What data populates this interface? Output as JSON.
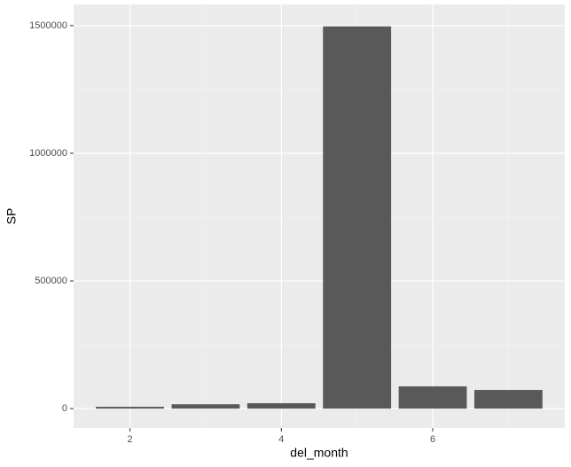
{
  "chart_data": {
    "type": "bar",
    "x_label": "del_month",
    "y_label": "SP",
    "x": [
      2,
      3,
      4,
      5,
      6,
      7
    ],
    "values": [
      7000,
      17000,
      21000,
      1497000,
      87000,
      73000
    ],
    "color": "#595959",
    "xlim": [
      1.255,
      7.745
    ],
    "xticks": [
      2,
      4,
      6
    ],
    "x_minor_grid": [
      3,
      5,
      7
    ],
    "ylim": [
      -76000,
      1583000
    ],
    "yticks": [
      0,
      500000,
      1000000,
      1500000
    ],
    "y_minor_grid": [
      250000,
      750000,
      1250000
    ],
    "grid": true
  }
}
